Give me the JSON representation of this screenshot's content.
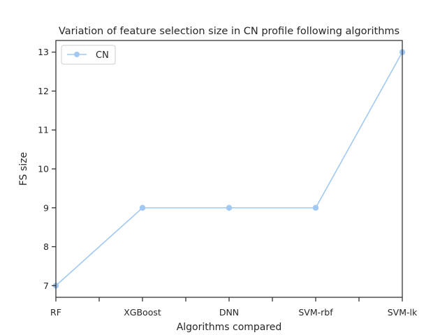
{
  "chart_data": {
    "type": "line",
    "title": "Variation of feature selection size in CN profile following algorithms",
    "xlabel": "Algorithms compared",
    "ylabel": "FS size",
    "categories": [
      "RF",
      "XGBoost",
      "DNN",
      "SVM-rbf",
      "SVM-lk"
    ],
    "series": [
      {
        "name": "CN",
        "values": [
          7,
          9,
          9,
          9,
          13
        ],
        "color": "#a1c9f4"
      }
    ],
    "ylim": [
      6.7,
      13.3
    ],
    "yticks": [
      7,
      8,
      9,
      10,
      11,
      12,
      13
    ],
    "grid": false,
    "legend": "top-left"
  }
}
